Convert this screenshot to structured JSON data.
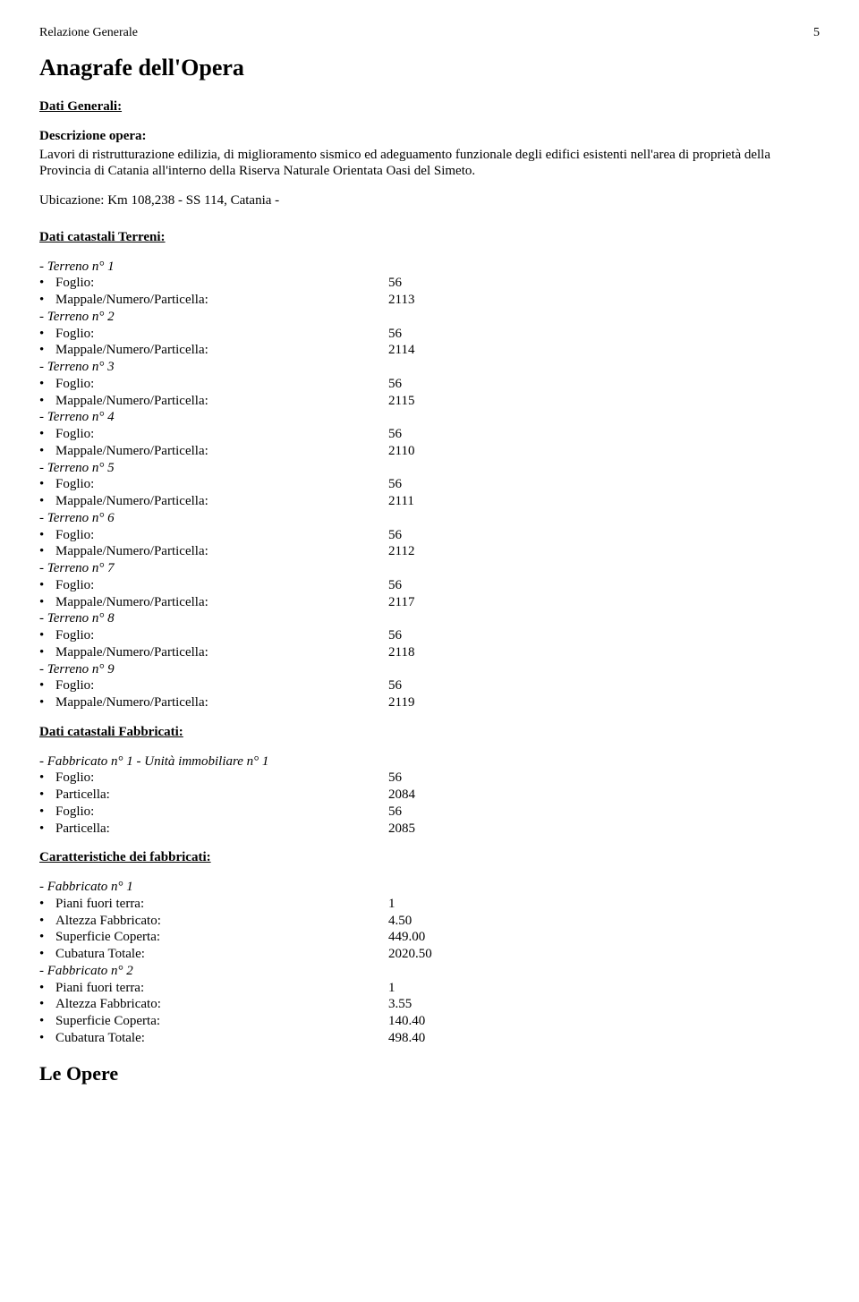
{
  "header": {
    "left": "Relazione Generale",
    "pageNumber": "5"
  },
  "title": "Anagrafe dell'Opera",
  "datiGenerali": {
    "heading": "Dati Generali:",
    "descLabel": "Descrizione opera:",
    "descText": "Lavori di ristrutturazione edilizia, di miglioramento sismico ed adeguamento funzionale degli edifici esistenti nell'area di proprietà della Provincia di Catania all'interno della Riserva Naturale Orientata Oasi del Simeto.",
    "locLabel": "Ubicazione:",
    "locText": "Km 108,238 - SS 114, Catania -"
  },
  "terreni": {
    "heading": "Dati catastali Terreni:",
    "foglioLabel": "Foglio:",
    "mappaleLabel": "Mappale/Numero/Particella:",
    "list": [
      {
        "title": "- Terreno n° 1",
        "foglio": "56",
        "mappale": "2113"
      },
      {
        "title": "- Terreno n° 2",
        "foglio": "56",
        "mappale": "2114"
      },
      {
        "title": "- Terreno n° 3",
        "foglio": "56",
        "mappale": "2115"
      },
      {
        "title": "- Terreno n° 4",
        "foglio": "56",
        "mappale": "2110"
      },
      {
        "title": "- Terreno n° 5",
        "foglio": "56",
        "mappale": "2111"
      },
      {
        "title": "- Terreno n° 6",
        "foglio": "56",
        "mappale": "2112"
      },
      {
        "title": "- Terreno n° 7",
        "foglio": "56",
        "mappale": "2117"
      },
      {
        "title": "- Terreno n° 8",
        "foglio": "56",
        "mappale": "2118"
      },
      {
        "title": "- Terreno n° 9",
        "foglio": "56",
        "mappale": "2119"
      }
    ]
  },
  "fabbricatiCat": {
    "heading": "Dati catastali Fabbricati:",
    "title": "- Fabbricato n° 1 - Unità immobiliare n° 1",
    "foglioLabel": "Foglio:",
    "particellaLabel": "Particella:",
    "rows": [
      {
        "label": "Foglio:",
        "value": "56"
      },
      {
        "label": "Particella:",
        "value": "2084"
      },
      {
        "label": "Foglio:",
        "value": "56"
      },
      {
        "label": "Particella:",
        "value": "2085"
      }
    ]
  },
  "caratteristiche": {
    "heading": "Caratteristiche dei fabbricati:",
    "list": [
      {
        "title": "- Fabbricato n° 1",
        "rows": [
          {
            "label": "Piani fuori terra:",
            "value": "1"
          },
          {
            "label": "Altezza Fabbricato:",
            "value": "4.50"
          },
          {
            "label": "Superficie Coperta:",
            "value": "449.00"
          },
          {
            "label": "Cubatura Totale:",
            "value": "2020.50"
          }
        ]
      },
      {
        "title": "- Fabbricato n° 2",
        "rows": [
          {
            "label": "Piani fuori terra:",
            "value": "1"
          },
          {
            "label": "Altezza Fabbricato:",
            "value": "3.55"
          },
          {
            "label": "Superficie Coperta:",
            "value": "140.40"
          },
          {
            "label": "Cubatura Totale:",
            "value": "498.40"
          }
        ]
      }
    ]
  },
  "bottomHeading": "Le Opere"
}
